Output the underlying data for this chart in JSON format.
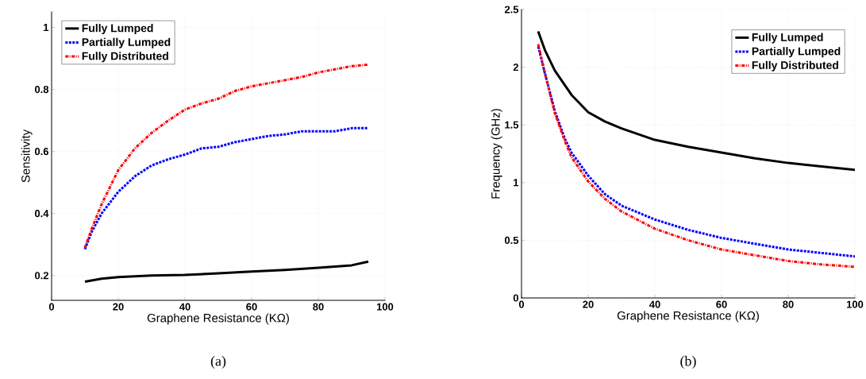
{
  "chart_data": [
    {
      "type": "line",
      "xlabel": "Graphene Resistance (KΩ)",
      "ylabel": "Sensitivity",
      "annotations": [
        "(a)"
      ],
      "xlim": [
        0,
        100
      ],
      "ylim": [
        0.12,
        1.05
      ],
      "xticks": [
        0,
        20,
        40,
        60,
        80,
        100
      ],
      "yticks": [
        0.2,
        0.4,
        0.6,
        0.8,
        1
      ],
      "grid": true,
      "legend": "top left",
      "series": [
        {
          "name": "Fully Lumped",
          "color": "#000000",
          "line_style": "solid",
          "x": [
            10,
            15,
            20,
            30,
            40,
            50,
            60,
            70,
            80,
            90,
            95
          ],
          "values": [
            0.18,
            0.19,
            0.195,
            0.2,
            0.202,
            0.207,
            0.213,
            0.218,
            0.225,
            0.233,
            0.245
          ]
        },
        {
          "name": "Partially Lumped",
          "color": "#0000ff",
          "line_style": "dashed",
          "x": [
            10,
            12,
            15,
            20,
            25,
            30,
            35,
            40,
            45,
            50,
            55,
            60,
            65,
            70,
            75,
            80,
            85,
            90,
            95
          ],
          "values": [
            0.285,
            0.34,
            0.4,
            0.47,
            0.52,
            0.555,
            0.575,
            0.59,
            0.61,
            0.615,
            0.63,
            0.64,
            0.65,
            0.655,
            0.665,
            0.665,
            0.665,
            0.675,
            0.675
          ]
        },
        {
          "name": "Fully Distributed",
          "color": "#ff0000",
          "line_style": "dashdot",
          "x": [
            10,
            12,
            15,
            20,
            25,
            30,
            35,
            40,
            45,
            50,
            55,
            60,
            65,
            70,
            75,
            80,
            85,
            90,
            95
          ],
          "values": [
            0.29,
            0.35,
            0.43,
            0.54,
            0.61,
            0.66,
            0.7,
            0.735,
            0.755,
            0.77,
            0.795,
            0.81,
            0.82,
            0.83,
            0.84,
            0.855,
            0.865,
            0.875,
            0.88
          ]
        }
      ]
    },
    {
      "type": "line",
      "xlabel": "Graphene Resistance (KΩ)",
      "ylabel": "Frequency (GHz)",
      "annotations": [
        "(b)"
      ],
      "xlim": [
        0,
        100
      ],
      "ylim": [
        0,
        2.5
      ],
      "xticks": [
        0,
        20,
        40,
        60,
        80,
        100
      ],
      "yticks": [
        0,
        0.5,
        1,
        1.5,
        2,
        2.5
      ],
      "grid": true,
      "legend": "top right",
      "series": [
        {
          "name": "Fully Lumped",
          "color": "#000000",
          "line_style": "solid",
          "x": [
            5,
            7,
            10,
            15,
            20,
            25,
            30,
            40,
            50,
            60,
            70,
            80,
            90,
            100
          ],
          "values": [
            2.31,
            2.15,
            1.97,
            1.76,
            1.61,
            1.53,
            1.47,
            1.37,
            1.31,
            1.26,
            1.21,
            1.17,
            1.14,
            1.11
          ]
        },
        {
          "name": "Partially Lumped",
          "color": "#0000ff",
          "line_style": "dashed",
          "x": [
            5,
            7,
            10,
            13,
            15,
            20,
            25,
            30,
            40,
            50,
            60,
            70,
            80,
            90,
            100
          ],
          "values": [
            2.18,
            1.95,
            1.62,
            1.38,
            1.26,
            1.06,
            0.9,
            0.8,
            0.68,
            0.59,
            0.52,
            0.47,
            0.42,
            0.39,
            0.36
          ]
        },
        {
          "name": "Fully Distributed",
          "color": "#ff0000",
          "line_style": "dashdot",
          "x": [
            5,
            7,
            10,
            13,
            15,
            20,
            25,
            30,
            40,
            50,
            60,
            70,
            80,
            90,
            100
          ],
          "values": [
            2.2,
            1.95,
            1.6,
            1.36,
            1.22,
            1.01,
            0.86,
            0.75,
            0.6,
            0.5,
            0.42,
            0.37,
            0.32,
            0.29,
            0.27
          ]
        }
      ]
    }
  ]
}
